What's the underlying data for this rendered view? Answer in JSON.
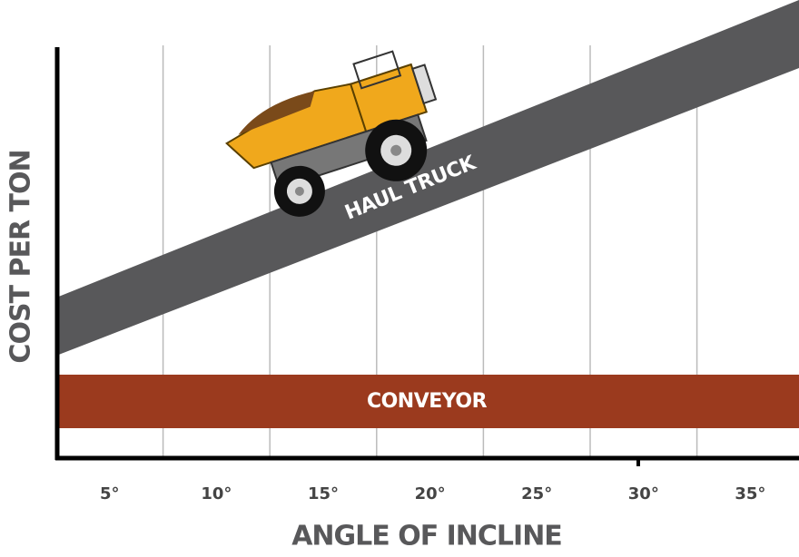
{
  "chart_data": {
    "type": "band",
    "xlabel": "ANGLE OF INCLINE",
    "ylabel": "COST PER TON",
    "categories": [
      "5°",
      "10°",
      "15°",
      "20°",
      "25°",
      "30°",
      "35°"
    ],
    "series": [
      {
        "name": "HAUL TRUCK",
        "color": "#58585a"
      },
      {
        "name": "CONVEYOR",
        "color": "#9b3a1e"
      }
    ],
    "grid": true
  }
}
